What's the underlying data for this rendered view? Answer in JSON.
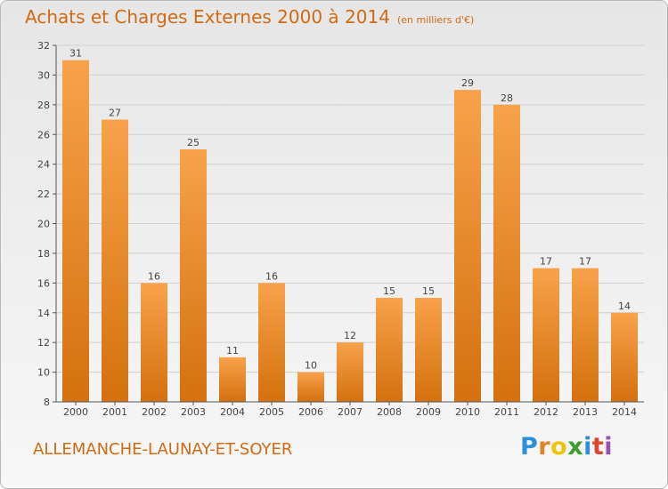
{
  "page": {
    "title": "Achats et Charges Externes 2000 à 2014",
    "unit_note": "(en milliers d'€)",
    "commune": "ALLEMANCHE-LAUNAY-ET-SOYER",
    "logo": {
      "letters": [
        "P",
        "r",
        "o",
        "x",
        "i",
        "t",
        "i"
      ]
    }
  },
  "colors": {
    "title": "#d06a14",
    "bar_top": "#f7a24a",
    "bar_bottom": "#d4700f",
    "axis": "#555555",
    "grid": "#d0d0d0"
  },
  "chart_data": {
    "type": "bar",
    "categories": [
      "2000",
      "2001",
      "2002",
      "2003",
      "2004",
      "2005",
      "2006",
      "2007",
      "2008",
      "2009",
      "2010",
      "2011",
      "2012",
      "2013",
      "2014"
    ],
    "values": [
      31,
      27,
      16,
      25,
      11,
      16,
      10,
      12,
      15,
      15,
      29,
      28,
      17,
      17,
      14
    ],
    "title": "Achats et Charges Externes 2000 à 2014",
    "ylim": [
      8,
      32
    ],
    "yticks": [
      8,
      10,
      12,
      14,
      16,
      18,
      20,
      22,
      24,
      26,
      28,
      30,
      32
    ],
    "grid": true,
    "legend": "none"
  }
}
